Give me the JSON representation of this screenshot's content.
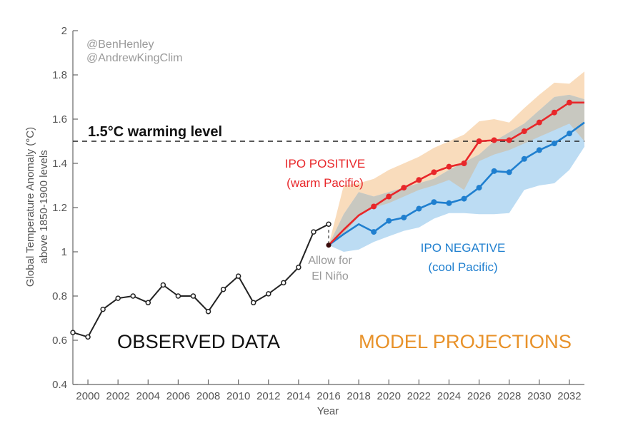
{
  "chart_data": {
    "type": "line",
    "title": "",
    "xlabel": "Year",
    "ylabel": [
      "Global Temperature Anomaly (°C)",
      "above 1850-1900 levels"
    ],
    "xlim": [
      1999,
      2033
    ],
    "ylim": [
      0.4,
      2.0
    ],
    "x_ticks": [
      2000,
      2002,
      2004,
      2006,
      2008,
      2010,
      2012,
      2014,
      2016,
      2018,
      2020,
      2022,
      2024,
      2026,
      2028,
      2030,
      2032
    ],
    "x_tick_labels": [
      "2000",
      "2002",
      "2004",
      "2006",
      "2008",
      "2010",
      "2012",
      "2014",
      "2016",
      "2018",
      "2020",
      "2022",
      "2024",
      "2026",
      "2028",
      "2030",
      "2032"
    ],
    "y_ticks": [
      0.4,
      0.6,
      0.8,
      1.0,
      1.2,
      1.4,
      1.6,
      1.8,
      2.0
    ],
    "y_tick_labels": [
      "0.4",
      "0.6",
      "0.8",
      "1",
      "1.2",
      "1.4",
      "1.6",
      "1.8",
      "2"
    ],
    "grid": false,
    "threshold": {
      "value": 1.5,
      "label": "1.5°C warming level",
      "style": "dashed",
      "color": "#222222"
    },
    "credits": [
      "@BenHenley",
      "@AndrewKingClim"
    ],
    "series": [
      {
        "name": "Observed data",
        "color": "#222222",
        "marker": "open-circle",
        "x": [
          1999,
          2000,
          2001,
          2002,
          2003,
          2004,
          2005,
          2006,
          2007,
          2008,
          2009,
          2010,
          2011,
          2012,
          2013,
          2014,
          2015,
          2016
        ],
        "values": [
          0.635,
          0.615,
          0.74,
          0.79,
          0.8,
          0.77,
          0.85,
          0.8,
          0.8,
          0.73,
          0.83,
          0.89,
          0.77,
          0.81,
          0.86,
          0.93,
          1.09,
          1.125
        ]
      },
      {
        "name": "IPO positive (warm Pacific)",
        "color": "#e8272a",
        "marker": "filled-circle",
        "marker_x": [
          2016,
          2019,
          2020,
          2021,
          2022,
          2023,
          2024,
          2025,
          2026,
          2027,
          2028,
          2029,
          2030,
          2031,
          2032
        ],
        "x": [
          2016,
          2017,
          2018,
          2019,
          2020,
          2021,
          2022,
          2023,
          2024,
          2025,
          2026,
          2027,
          2028,
          2029,
          2030,
          2031,
          2032,
          2033
        ],
        "values": [
          1.03,
          1.1,
          1.165,
          1.205,
          1.25,
          1.29,
          1.325,
          1.36,
          1.385,
          1.4,
          1.5,
          1.505,
          1.505,
          1.545,
          1.585,
          1.63,
          1.675,
          1.675
        ],
        "band": {
          "color": "#f9dcbc",
          "upper": [
            1.03,
            1.3,
            1.31,
            1.33,
            1.37,
            1.4,
            1.43,
            1.47,
            1.5,
            1.53,
            1.59,
            1.6,
            1.585,
            1.65,
            1.71,
            1.765,
            1.76,
            1.815
          ],
          "lower": [
            1.03,
            1.08,
            1.16,
            1.2,
            1.22,
            1.25,
            1.28,
            1.3,
            1.325,
            1.28,
            1.41,
            1.44,
            1.46,
            1.49,
            1.52,
            1.55,
            1.58,
            1.5
          ]
        }
      },
      {
        "name": "IPO negative (cool Pacific)",
        "color": "#1f7fcf",
        "marker": "filled-circle",
        "marker_x": [
          2016,
          2019,
          2020,
          2021,
          2022,
          2023,
          2024,
          2025,
          2026,
          2027,
          2028,
          2029,
          2030,
          2031,
          2032
        ],
        "x": [
          2016,
          2017,
          2018,
          2019,
          2020,
          2021,
          2022,
          2023,
          2024,
          2025,
          2026,
          2027,
          2028,
          2029,
          2030,
          2031,
          2032,
          2033
        ],
        "values": [
          1.03,
          1.08,
          1.125,
          1.09,
          1.14,
          1.155,
          1.195,
          1.225,
          1.22,
          1.24,
          1.29,
          1.365,
          1.36,
          1.42,
          1.46,
          1.49,
          1.535,
          1.585
        ],
        "band": {
          "color": "#bcdcf3",
          "upper": [
            1.03,
            1.17,
            1.27,
            1.25,
            1.27,
            1.29,
            1.31,
            1.33,
            1.37,
            1.405,
            1.44,
            1.5,
            1.54,
            1.58,
            1.64,
            1.7,
            1.71,
            1.69
          ],
          "lower": [
            1.03,
            1.0,
            1.01,
            1.045,
            1.07,
            1.095,
            1.11,
            1.15,
            1.175,
            1.175,
            1.17,
            1.17,
            1.175,
            1.28,
            1.3,
            1.31,
            1.37,
            1.475
          ]
        }
      }
    ],
    "overlap_color": "#c8c8c0",
    "connector": {
      "from": [
        2016,
        1.125
      ],
      "to": [
        2016,
        1.03
      ],
      "style": "dashed",
      "label": [
        "Allow for",
        "El Niño"
      ]
    },
    "annotations": [
      {
        "text": [
          "IPO POSITIVE",
          "(warm Pacific)"
        ],
        "color": "#e8272a"
      },
      {
        "text": [
          "IPO NEGATIVE",
          "(cool Pacific)"
        ],
        "color": "#1f7fcf"
      },
      {
        "text": "OBSERVED DATA",
        "color": "#111111"
      },
      {
        "text": "MODEL PROJECTIONS",
        "color": "#e8922a"
      }
    ]
  }
}
